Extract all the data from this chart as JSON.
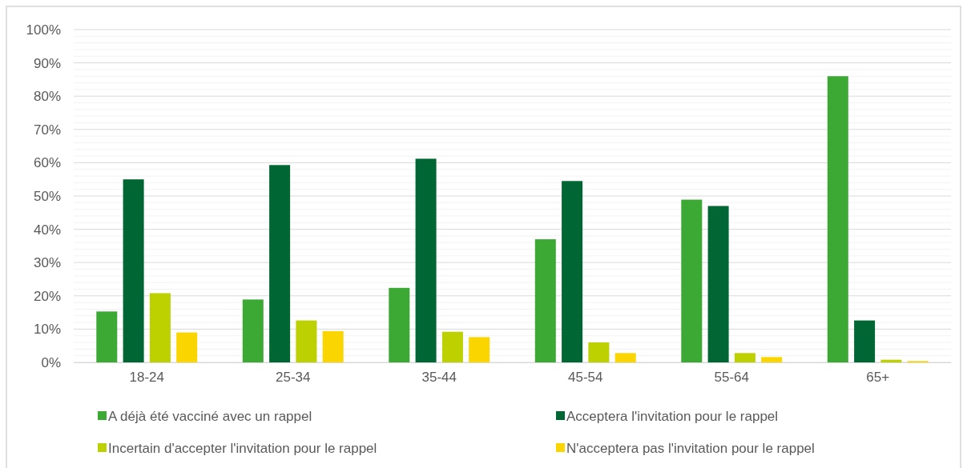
{
  "chart_data": {
    "type": "bar",
    "categories": [
      "18-24",
      "25-34",
      "35-44",
      "45-54",
      "55-64",
      "65+"
    ],
    "series": [
      {
        "name": "A déjà été vacciné avec un rappel",
        "color": "#3ca935",
        "values": [
          15.3,
          18.9,
          22.4,
          37,
          48.9,
          86
        ]
      },
      {
        "name": "Acceptera l'invitation pour le rappel",
        "color": "#006633",
        "values": [
          55,
          59.3,
          61.2,
          54.5,
          47,
          12.6
        ]
      },
      {
        "name": "Incertain d'accepter l'invitation pour le rappel",
        "color": "#bdd000",
        "values": [
          20.8,
          12.6,
          9.2,
          6,
          2.8,
          0.8
        ]
      },
      {
        "name": "N'acceptera pas l'invitation pour le rappel",
        "color": "#fbd500",
        "values": [
          9,
          9.4,
          7.6,
          2.8,
          1.6,
          0.4
        ]
      }
    ],
    "ylim": [
      0,
      100
    ],
    "yticks": [
      {
        "value": 0,
        "label": "0%"
      },
      {
        "value": 2,
        "label": null
      },
      {
        "value": 4,
        "label": null
      },
      {
        "value": 6,
        "label": null
      },
      {
        "value": 8,
        "label": null
      },
      {
        "value": 10,
        "label": "10%"
      },
      {
        "value": 12,
        "label": null
      },
      {
        "value": 14,
        "label": null
      },
      {
        "value": 16,
        "label": null
      },
      {
        "value": 18,
        "label": null
      },
      {
        "value": 20,
        "label": "20%"
      },
      {
        "value": 22,
        "label": null
      },
      {
        "value": 24,
        "label": null
      },
      {
        "value": 26,
        "label": null
      },
      {
        "value": 28,
        "label": null
      },
      {
        "value": 30,
        "label": "30%"
      },
      {
        "value": 32,
        "label": null
      },
      {
        "value": 34,
        "label": null
      },
      {
        "value": 36,
        "label": null
      },
      {
        "value": 38,
        "label": null
      },
      {
        "value": 40,
        "label": "40%"
      },
      {
        "value": 42,
        "label": null
      },
      {
        "value": 44,
        "label": null
      },
      {
        "value": 46,
        "label": null
      },
      {
        "value": 48,
        "label": null
      },
      {
        "value": 50,
        "label": "50%"
      },
      {
        "value": 52,
        "label": null
      },
      {
        "value": 54,
        "label": null
      },
      {
        "value": 56,
        "label": null
      },
      {
        "value": 58,
        "label": null
      },
      {
        "value": 60,
        "label": "60%"
      },
      {
        "value": 62,
        "label": null
      },
      {
        "value": 64,
        "label": null
      },
      {
        "value": 66,
        "label": null
      },
      {
        "value": 68,
        "label": null
      },
      {
        "value": 70,
        "label": "70%"
      },
      {
        "value": 72,
        "label": null
      },
      {
        "value": 74,
        "label": null
      },
      {
        "value": 76,
        "label": null
      },
      {
        "value": 78,
        "label": null
      },
      {
        "value": 80,
        "label": "80%"
      },
      {
        "value": 82,
        "label": null
      },
      {
        "value": 84,
        "label": null
      },
      {
        "value": 86,
        "label": null
      },
      {
        "value": 88,
        "label": null
      },
      {
        "value": 90,
        "label": "90%"
      },
      {
        "value": 92,
        "label": null
      },
      {
        "value": 94,
        "label": null
      },
      {
        "value": 96,
        "label": null
      },
      {
        "value": 98,
        "label": null
      },
      {
        "value": 100,
        "label": "100%"
      }
    ],
    "grid": "y",
    "legend": "bottom"
  }
}
